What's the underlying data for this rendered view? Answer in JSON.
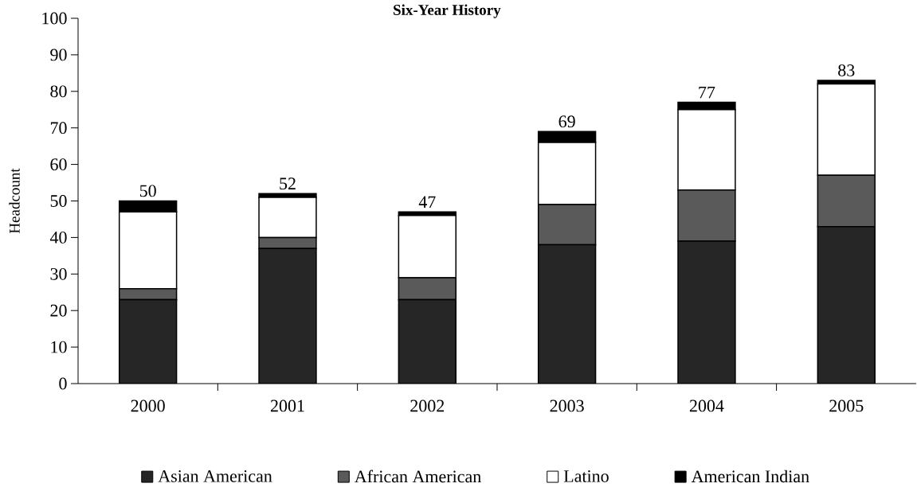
{
  "chart_data": {
    "type": "bar",
    "stacked": true,
    "title": "Six-Year History",
    "ylabel": "Headcount",
    "categories": [
      "2000",
      "2001",
      "2002",
      "2003",
      "2004",
      "2005"
    ],
    "series": [
      {
        "name": "Asian American",
        "color": "#262626",
        "values": [
          23,
          37,
          23,
          38,
          39,
          43
        ]
      },
      {
        "name": "African American",
        "color": "#5a5a5a",
        "values": [
          3,
          3,
          6,
          11,
          14,
          14
        ]
      },
      {
        "name": "Latino",
        "color": "#ffffff",
        "values": [
          21,
          11,
          17,
          17,
          22,
          25
        ]
      },
      {
        "name": "American Indian",
        "color": "#000000",
        "values": [
          3,
          1,
          1,
          3,
          2,
          1
        ]
      }
    ],
    "totals": [
      "50",
      "52",
      "47",
      "69",
      "77",
      "83"
    ],
    "ylim": [
      0,
      100
    ],
    "yticks": [
      0,
      10,
      20,
      30,
      40,
      50,
      60,
      70,
      80,
      90,
      100
    ],
    "legend": "bottom"
  }
}
